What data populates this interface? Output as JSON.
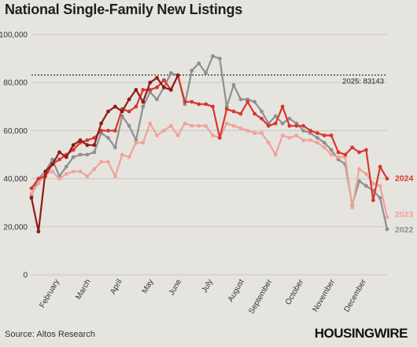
{
  "title": "National Single-Family New Listings",
  "source": "Source: Altos Research",
  "brand": "HOUSINGWIRE",
  "colors": {
    "background": "#e6e4df",
    "grid": "#c9c6c0",
    "y2022": "#8f8f8f",
    "y2023": "#f0a39a",
    "y2024": "#d7372e",
    "y2025": "#8e1b17",
    "ref": "#222222"
  },
  "chart_data": {
    "type": "line",
    "title": "National Single-Family New Listings",
    "ylim": [
      0,
      100000
    ],
    "yticks": [
      0,
      20000,
      40000,
      60000,
      80000,
      100000
    ],
    "ytick_labels": [
      "0",
      "20,000",
      "40,000",
      "60,000",
      "80,000",
      "100,000"
    ],
    "x_unit": "week of year",
    "xlim": [
      1,
      52
    ],
    "month_labels": [
      {
        "label": "February",
        "week": 5
      },
      {
        "label": "March",
        "week": 9.5
      },
      {
        "label": "April",
        "week": 14
      },
      {
        "label": "May",
        "week": 18.5
      },
      {
        "label": "June",
        "week": 22.5
      },
      {
        "label": "July",
        "week": 27
      },
      {
        "label": "August",
        "week": 31.5
      },
      {
        "label": "September",
        "week": 35.5
      },
      {
        "label": "October",
        "week": 40
      },
      {
        "label": "November",
        "week": 44.5
      },
      {
        "label": "December",
        "week": 49
      }
    ],
    "grid": "horizontal",
    "reference_line": {
      "value": 83143,
      "label": "2025: 83143"
    },
    "series": [
      {
        "name": "2022",
        "color": "#8f8f8f",
        "end_label": "2022",
        "values": [
          33000,
          40000,
          43000,
          48000,
          41000,
          45000,
          49000,
          50000,
          50000,
          51000,
          59000,
          57000,
          53000,
          66000,
          62000,
          56000,
          70000,
          76000,
          73000,
          78000,
          84000,
          83000,
          71000,
          85000,
          88000,
          84000,
          91000,
          90000,
          70000,
          79000,
          73000,
          73000,
          72000,
          68000,
          63000,
          66000,
          63000,
          65000,
          63000,
          60000,
          59000,
          57000,
          55000,
          52000,
          48000,
          46000,
          29000,
          39000,
          37000,
          35000,
          32000,
          19000
        ]
      },
      {
        "name": "2023",
        "color": "#f0a39a",
        "end_label": "2023",
        "values": [
          34000,
          38000,
          42000,
          43000,
          40000,
          42000,
          43000,
          43000,
          41000,
          44000,
          47000,
          47000,
          41000,
          50000,
          49000,
          55000,
          55000,
          63000,
          58000,
          60000,
          62000,
          58000,
          63000,
          62000,
          62000,
          62000,
          58000,
          57000,
          63000,
          62000,
          61000,
          60000,
          59000,
          59000,
          55000,
          50000,
          58000,
          57000,
          58000,
          56000,
          56000,
          55000,
          53000,
          50000,
          49000,
          49000,
          28000,
          44000,
          42000,
          38000,
          37000,
          24000
        ]
      },
      {
        "name": "2024",
        "color": "#d7372e",
        "end_label": "2024",
        "values": [
          36000,
          40000,
          41000,
          46000,
          48000,
          50000,
          52000,
          55000,
          56000,
          57000,
          60000,
          60000,
          60000,
          69000,
          68000,
          70000,
          77000,
          77000,
          78000,
          81000,
          77000,
          83000,
          72000,
          72000,
          71000,
          71000,
          70000,
          57000,
          69000,
          68000,
          67000,
          72000,
          67000,
          65000,
          62000,
          63000,
          70000,
          62000,
          62000,
          62000,
          60000,
          59000,
          58000,
          58000,
          51000,
          50000,
          53000,
          51000,
          52000,
          31000,
          45000,
          40000
        ]
      },
      {
        "name": "2025",
        "color": "#8e1b17",
        "values": [
          32000,
          18000,
          43000,
          46000,
          51000,
          49000,
          54000,
          56000,
          54000,
          54000,
          63000,
          68000,
          70000,
          68000,
          73000,
          77000,
          72000,
          80000,
          82000,
          78000,
          77000,
          83000
        ]
      }
    ]
  }
}
